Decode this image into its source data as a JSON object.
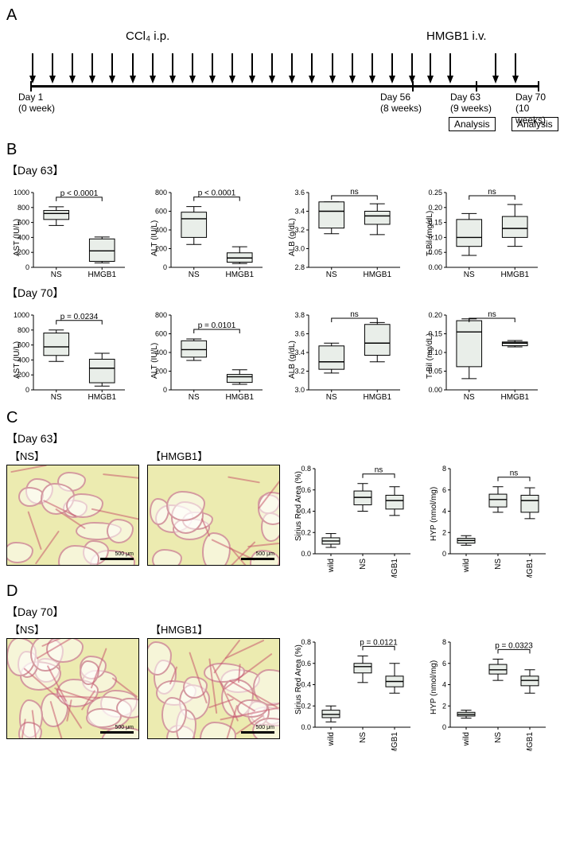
{
  "colors": {
    "box_fill": "#e9eee9",
    "axis": "#000000",
    "micrograph_bg": "#ecebb0",
    "fiber": "rgba(200,90,110,0.55)"
  },
  "panelA": {
    "letter": "A",
    "ccl4_label": "CCl₄ i.p.",
    "hmgb1_label": "HMGB1 i.v.",
    "ccl4_arrow_count": 20,
    "hmgb1_arrow_count": 4,
    "day_labels": [
      {
        "text": "Day 1",
        "sub": "(0 week)"
      },
      {
        "text": "Day 56",
        "sub": "(8 weeks)"
      },
      {
        "text": "Day 63",
        "sub": "(9 weeks)"
      },
      {
        "text": "Day 70",
        "sub": "(10 weeks)"
      }
    ],
    "analysis_label": "Analysis"
  },
  "panelB": {
    "letter": "B",
    "rows": [
      {
        "tag": "【Day 63】",
        "charts": [
          {
            "ylabel": "AST (IU/L)",
            "ymin": 0,
            "ymax": 1000,
            "ystep": 200,
            "groups": [
              "NS",
              "HMGB1"
            ],
            "boxes": [
              {
                "q1": 640,
                "med": 720,
                "q3": 760,
                "wl": 560,
                "wh": 810
              },
              {
                "q1": 80,
                "med": 220,
                "q3": 380,
                "wl": 60,
                "wh": 405
              }
            ],
            "pval": "p < 0.0001"
          },
          {
            "ylabel": "ALT (IU/L)",
            "ymin": 0,
            "ymax": 800,
            "ystep": 200,
            "groups": [
              "NS",
              "HMGB1"
            ],
            "boxes": [
              {
                "q1": 320,
                "med": 520,
                "q3": 590,
                "wl": 245,
                "wh": 650
              },
              {
                "q1": 55,
                "med": 100,
                "q3": 155,
                "wl": 40,
                "wh": 220
              }
            ],
            "pval": "p < 0.0001"
          },
          {
            "ylabel": "ALB (g/dL)",
            "ymin": 2.8,
            "ymax": 3.6,
            "ystep": 0.2,
            "groups": [
              "NS",
              "HMGB1"
            ],
            "boxes": [
              {
                "q1": 3.22,
                "med": 3.4,
                "q3": 3.5,
                "wl": 3.16,
                "wh": 3.5
              },
              {
                "q1": 3.26,
                "med": 3.35,
                "q3": 3.4,
                "wl": 3.15,
                "wh": 3.48
              }
            ],
            "pval": "ns"
          },
          {
            "ylabel": "T-Bil (mg/dL)",
            "ymin": 0.0,
            "ymax": 0.25,
            "ystep": 0.05,
            "groups": [
              "NS",
              "HMGB1"
            ],
            "boxes": [
              {
                "q1": 0.07,
                "med": 0.1,
                "q3": 0.16,
                "wl": 0.04,
                "wh": 0.18
              },
              {
                "q1": 0.1,
                "med": 0.13,
                "q3": 0.17,
                "wl": 0.07,
                "wh": 0.21
              }
            ],
            "pval": "ns"
          }
        ]
      },
      {
        "tag": "【Day 70】",
        "charts": [
          {
            "ylabel": "AST (IU/L)",
            "ymin": 0,
            "ymax": 1000,
            "ystep": 200,
            "groups": [
              "NS",
              "HMGB1"
            ],
            "boxes": [
              {
                "q1": 460,
                "med": 575,
                "q3": 760,
                "wl": 380,
                "wh": 800
              },
              {
                "q1": 95,
                "med": 290,
                "q3": 410,
                "wl": 50,
                "wh": 490
              }
            ],
            "pval": "p = 0.0234"
          },
          {
            "ylabel": "ALT (IU/L)",
            "ymin": 0,
            "ymax": 800,
            "ystep": 200,
            "groups": [
              "NS",
              "HMGB1"
            ],
            "boxes": [
              {
                "q1": 350,
                "med": 430,
                "q3": 525,
                "wl": 315,
                "wh": 545
              },
              {
                "q1": 80,
                "med": 140,
                "q3": 165,
                "wl": 60,
                "wh": 215
              }
            ],
            "pval": "p = 0.0101"
          },
          {
            "ylabel": "ALB (g/dL)",
            "ymin": 3.0,
            "ymax": 3.8,
            "ystep": 0.2,
            "groups": [
              "NS",
              "HMGB1"
            ],
            "boxes": [
              {
                "q1": 3.22,
                "med": 3.3,
                "q3": 3.47,
                "wl": 3.18,
                "wh": 3.5
              },
              {
                "q1": 3.37,
                "med": 3.5,
                "q3": 3.7,
                "wl": 3.3,
                "wh": 3.72
              }
            ],
            "pval": "ns"
          },
          {
            "ylabel": "T-Bil (mg/dL)",
            "ymin": 0.0,
            "ymax": 0.2,
            "ystep": 0.05,
            "groups": [
              "NS",
              "HMGB1"
            ],
            "boxes": [
              {
                "q1": 0.062,
                "med": 0.155,
                "q3": 0.185,
                "wl": 0.03,
                "wh": 0.19
              },
              {
                "q1": 0.118,
                "med": 0.125,
                "q3": 0.128,
                "wl": 0.115,
                "wh": 0.132
              }
            ],
            "pval": "ns"
          }
        ]
      }
    ]
  },
  "panelC": {
    "letter": "C",
    "tag": "【Day 63】",
    "micrographs": [
      {
        "label": "【NS】"
      },
      {
        "label": "【HMGB1】"
      }
    ],
    "scale_text": "500 μm",
    "charts": [
      {
        "ylabel": "Sirius Red Area (%)",
        "ymin": 0.0,
        "ymax": 0.8,
        "ystep": 0.2,
        "groups": [
          "wild",
          "NS",
          "HMGB1"
        ],
        "boxes": [
          {
            "q1": 0.09,
            "med": 0.12,
            "q3": 0.15,
            "wl": 0.06,
            "wh": 0.19
          },
          {
            "q1": 0.46,
            "med": 0.53,
            "q3": 0.59,
            "wl": 0.4,
            "wh": 0.66
          },
          {
            "q1": 0.42,
            "med": 0.5,
            "q3": 0.55,
            "wl": 0.36,
            "wh": 0.63
          }
        ],
        "pval": "ns",
        "compare": [
          1,
          2
        ]
      },
      {
        "ylabel": "HYP (nmol/mg)",
        "ymin": 0,
        "ymax": 8,
        "ystep": 2,
        "groups": [
          "wild",
          "NS",
          "HMGB1"
        ],
        "boxes": [
          {
            "q1": 1.0,
            "med": 1.25,
            "q3": 1.45,
            "wl": 0.8,
            "wh": 1.7
          },
          {
            "q1": 4.4,
            "med": 5.1,
            "q3": 5.6,
            "wl": 3.9,
            "wh": 6.3
          },
          {
            "q1": 3.9,
            "med": 5.0,
            "q3": 5.5,
            "wl": 3.3,
            "wh": 6.2
          }
        ],
        "pval": "ns",
        "compare": [
          1,
          2
        ]
      }
    ]
  },
  "panelD": {
    "letter": "D",
    "tag": "【Day 70】",
    "micrographs": [
      {
        "label": "【NS】"
      },
      {
        "label": "【HMGB1】"
      }
    ],
    "scale_text": "500 μm",
    "charts": [
      {
        "ylabel": "Sirius Red Area (%)",
        "ymin": 0.0,
        "ymax": 0.8,
        "ystep": 0.2,
        "groups": [
          "wild",
          "NS",
          "HMGB1"
        ],
        "boxes": [
          {
            "q1": 0.09,
            "med": 0.12,
            "q3": 0.16,
            "wl": 0.05,
            "wh": 0.2
          },
          {
            "q1": 0.51,
            "med": 0.57,
            "q3": 0.6,
            "wl": 0.42,
            "wh": 0.67
          },
          {
            "q1": 0.38,
            "med": 0.43,
            "q3": 0.48,
            "wl": 0.32,
            "wh": 0.6
          }
        ],
        "pval": "p = 0.0121",
        "compare": [
          1,
          2
        ]
      },
      {
        "ylabel": "HYP (nmol/mg)",
        "ymin": 0,
        "ymax": 8,
        "ystep": 2,
        "groups": [
          "wild",
          "NS",
          "HMGB1"
        ],
        "boxes": [
          {
            "q1": 1.05,
            "med": 1.2,
            "q3": 1.4,
            "wl": 0.85,
            "wh": 1.6
          },
          {
            "q1": 5.0,
            "med": 5.4,
            "q3": 5.9,
            "wl": 4.4,
            "wh": 6.4
          },
          {
            "q1": 3.9,
            "med": 4.4,
            "q3": 4.8,
            "wl": 3.2,
            "wh": 5.4
          }
        ],
        "pval": "p = 0.0323",
        "compare": [
          1,
          2
        ]
      }
    ]
  }
}
